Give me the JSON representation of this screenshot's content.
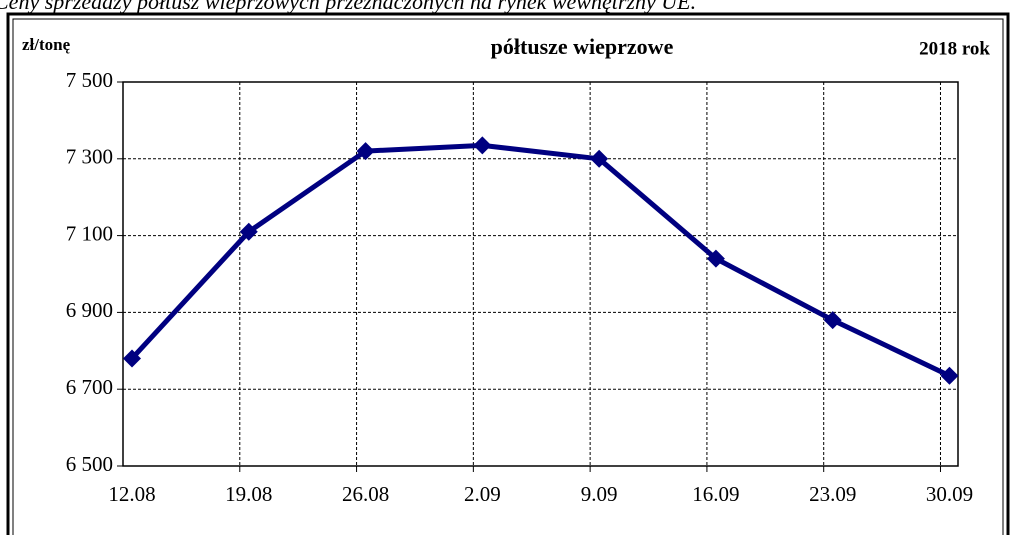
{
  "caption": "Ceny sprzedaży półtusz wieprzowych przeznaczonych na rynek wewnętrzny UE.",
  "chart_data": {
    "type": "line",
    "title": "półtusze wieprzowe",
    "y_label": "zł/tonę",
    "period": "2018 rok",
    "categories": [
      "12.08",
      "19.08",
      "26.08",
      "2.09",
      "9.09",
      "16.09",
      "23.09",
      "30.09"
    ],
    "series": [
      {
        "name": "półtusze wieprzowe",
        "color": "#000080",
        "values": [
          6780,
          7110,
          7320,
          7335,
          7300,
          7040,
          6880,
          6735
        ]
      }
    ],
    "ylim": [
      6500,
      7500
    ],
    "yticks": [
      {
        "value": 6500,
        "label": "6 500"
      },
      {
        "value": 6700,
        "label": "6 700"
      },
      {
        "value": 6900,
        "label": "6 900"
      },
      {
        "value": 7100,
        "label": "7 100"
      },
      {
        "value": 7300,
        "label": "7 300"
      },
      {
        "value": 7500,
        "label": "7 500"
      }
    ],
    "grid": true
  }
}
